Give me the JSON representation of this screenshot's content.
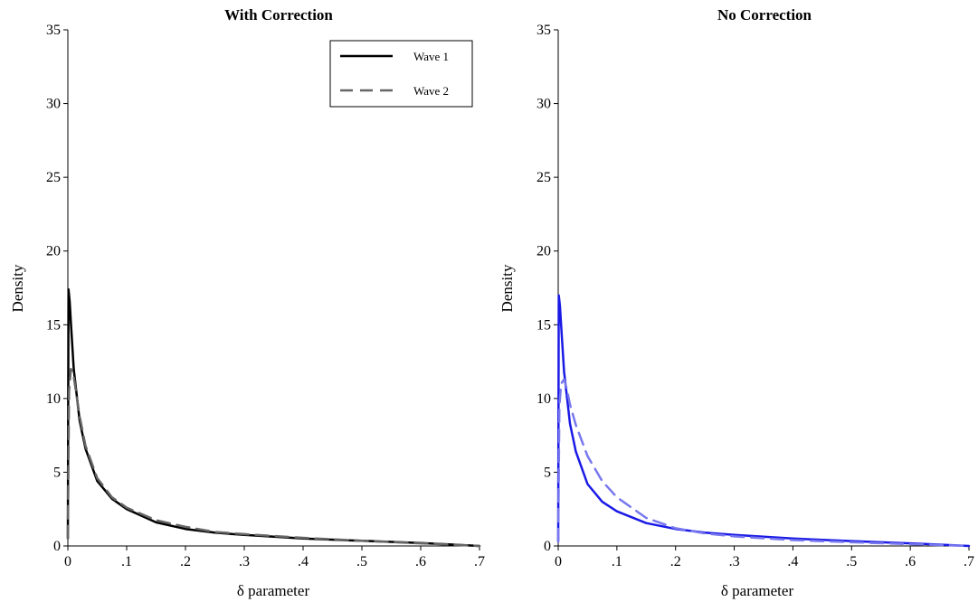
{
  "chart_data": [
    {
      "type": "line",
      "title": "With Correction",
      "xlabel": "δ parameter",
      "ylabel": "Density",
      "xlim": [
        0,
        0.7
      ],
      "ylim": [
        0,
        35
      ],
      "x_ticks": [
        "0",
        ".1",
        ".2",
        ".3",
        ".4",
        ".5",
        ".6",
        ".7"
      ],
      "y_ticks": [
        "0",
        "5",
        "10",
        "15",
        "20",
        "25",
        "30",
        "35"
      ],
      "legend": {
        "position": "top-right",
        "entries": [
          {
            "label": "Wave 1",
            "style": "solid"
          },
          {
            "label": "Wave 2",
            "style": "dashed"
          }
        ]
      },
      "series": [
        {
          "style": "solid",
          "color": "#000000",
          "x": [
            0,
            0.001,
            0.003,
            0.005,
            0.01,
            0.02,
            0.03,
            0.05,
            0.075,
            0.1,
            0.15,
            0.2,
            0.25,
            0.3,
            0.4,
            0.5,
            0.6,
            0.7
          ],
          "y": [
            0.5,
            17.4,
            16.6,
            15.2,
            12.0,
            8.5,
            6.6,
            4.4,
            3.2,
            2.5,
            1.6,
            1.15,
            0.9,
            0.75,
            0.5,
            0.35,
            0.2,
            0.0
          ]
        },
        {
          "style": "dashed",
          "color": "#666666",
          "x": [
            0,
            0.002,
            0.005,
            0.01,
            0.02,
            0.03,
            0.05,
            0.075,
            0.1,
            0.15,
            0.2,
            0.25,
            0.3,
            0.4,
            0.5,
            0.6,
            0.7
          ],
          "y": [
            0.5,
            10.5,
            12.0,
            11.5,
            8.8,
            6.8,
            4.6,
            3.3,
            2.6,
            1.75,
            1.3,
            0.95,
            0.8,
            0.55,
            0.35,
            0.18,
            0.0
          ]
        }
      ]
    },
    {
      "type": "line",
      "title": "No Correction",
      "xlabel": "δ parameter",
      "ylabel": "Density",
      "xlim": [
        0,
        0.7
      ],
      "ylim": [
        0,
        35
      ],
      "x_ticks": [
        "0",
        ".1",
        ".2",
        ".3",
        ".4",
        ".5",
        ".6",
        ".7"
      ],
      "y_ticks": [
        "0",
        "5",
        "10",
        "15",
        "20",
        "25",
        "30",
        "35"
      ],
      "series": [
        {
          "style": "solid",
          "color": "#1a1ae6",
          "x": [
            0,
            0.001,
            0.003,
            0.005,
            0.01,
            0.02,
            0.03,
            0.05,
            0.075,
            0.1,
            0.15,
            0.2,
            0.25,
            0.3,
            0.4,
            0.5,
            0.6,
            0.7
          ],
          "y": [
            0.3,
            17.0,
            16.3,
            15.0,
            11.8,
            8.3,
            6.4,
            4.2,
            3.0,
            2.35,
            1.55,
            1.15,
            0.9,
            0.75,
            0.5,
            0.33,
            0.18,
            0.0
          ]
        },
        {
          "style": "dashed",
          "color": "#7878ee",
          "x": [
            0,
            0.002,
            0.005,
            0.01,
            0.015,
            0.02,
            0.03,
            0.05,
            0.075,
            0.1,
            0.15,
            0.2,
            0.25,
            0.3,
            0.4,
            0.5,
            0.6,
            0.7
          ],
          "y": [
            0.3,
            9.5,
            11.0,
            11.3,
            10.6,
            9.6,
            8.2,
            6.1,
            4.4,
            3.3,
            1.9,
            1.2,
            0.85,
            0.65,
            0.4,
            0.25,
            0.12,
            0.0
          ]
        }
      ]
    }
  ]
}
